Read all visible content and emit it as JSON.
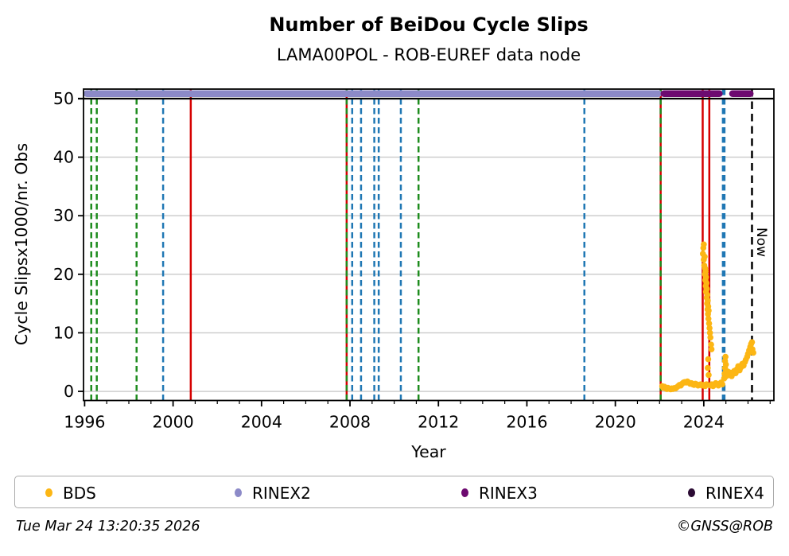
{
  "header": {
    "title": "Number of BeiDou Cycle Slips",
    "subtitle": "LAMA00POL - ROB-EUREF data node"
  },
  "chart_data": {
    "type": "scatter",
    "title": "Number of BeiDou Cycle Slips",
    "subtitle": "LAMA00POL - ROB-EUREF data node",
    "xlabel": "Year",
    "ylabel": "Cycle Slipsx1000/nr. Obs",
    "xlim": [
      1995.95,
      2027.17
    ],
    "ylim": [
      -1.56,
      51.63
    ],
    "xticks_major": [
      1996,
      2000,
      2004,
      2008,
      2012,
      2016,
      2020,
      2024
    ],
    "xtick_minor_step": 1,
    "yticks": [
      0,
      10,
      20,
      30,
      40,
      50
    ],
    "grid": "horizontal-gray",
    "legend_position": "bottom",
    "reference_line": {
      "value": 50,
      "color": "#000000"
    },
    "format_bands": {
      "value": 50.85,
      "segments": [
        {
          "name": "RINEX2",
          "start": 1996.1,
          "end": 2021.95,
          "color": "#8c8ac8"
        },
        {
          "name": "RINEX3",
          "start": 2022.2,
          "end": 2024.7,
          "color": "#6d0a70"
        },
        {
          "name": "RINEX3",
          "start": 2025.3,
          "end": 2026.1,
          "color": "#6d0a70"
        }
      ]
    },
    "event_lines": [
      {
        "year": 1996.3,
        "color": "green",
        "style": "dashed"
      },
      {
        "year": 1996.55,
        "color": "green",
        "style": "dashed"
      },
      {
        "year": 1998.35,
        "color": "green",
        "style": "dashed"
      },
      {
        "year": 1999.55,
        "color": "blue",
        "style": "dashed"
      },
      {
        "year": 2000.8,
        "color": "red",
        "style": "solid"
      },
      {
        "year": 2007.85,
        "color": "red",
        "style": "solid"
      },
      {
        "year": 2007.85,
        "color": "green",
        "style": "dashed"
      },
      {
        "year": 2008.1,
        "color": "blue",
        "style": "dashed"
      },
      {
        "year": 2008.5,
        "color": "blue",
        "style": "dashed"
      },
      {
        "year": 2009.1,
        "color": "blue",
        "style": "dashed"
      },
      {
        "year": 2009.3,
        "color": "blue",
        "style": "dashed"
      },
      {
        "year": 2010.3,
        "color": "blue",
        "style": "dashed"
      },
      {
        "year": 2011.1,
        "color": "green",
        "style": "dashed"
      },
      {
        "year": 2018.6,
        "color": "blue",
        "style": "dashed"
      },
      {
        "year": 2022.05,
        "color": "red",
        "style": "solid"
      },
      {
        "year": 2022.05,
        "color": "green",
        "style": "dashed"
      },
      {
        "year": 2023.95,
        "color": "red",
        "style": "solid"
      },
      {
        "year": 2024.25,
        "color": "red",
        "style": "solid"
      },
      {
        "year": 2024.9,
        "color": "blue",
        "style": "dashed",
        "width": 4.5
      },
      {
        "year": 2026.18,
        "color": "black",
        "style": "dashed"
      }
    ],
    "now_marker": {
      "year": 2026.18,
      "label": "Now"
    },
    "series": [
      {
        "name": "BDS",
        "color": "#fcb614",
        "points": [
          [
            2022.12,
            0.9
          ],
          [
            2022.17,
            0.6
          ],
          [
            2022.22,
            0.8
          ],
          [
            2022.28,
            0.5
          ],
          [
            2022.33,
            0.4
          ],
          [
            2022.38,
            0.6
          ],
          [
            2022.44,
            0.45
          ],
          [
            2022.5,
            0.35
          ],
          [
            2022.55,
            0.5
          ],
          [
            2022.6,
            0.4
          ],
          [
            2022.66,
            0.55
          ],
          [
            2022.72,
            0.5
          ],
          [
            2022.78,
            0.7
          ],
          [
            2022.84,
            0.9
          ],
          [
            2022.9,
            1.1
          ],
          [
            2022.96,
            1.0
          ],
          [
            2023.02,
            1.3
          ],
          [
            2023.08,
            1.5
          ],
          [
            2023.14,
            1.6
          ],
          [
            2023.2,
            1.5
          ],
          [
            2023.26,
            1.7
          ],
          [
            2023.32,
            1.5
          ],
          [
            2023.38,
            1.3
          ],
          [
            2023.44,
            1.4
          ],
          [
            2023.5,
            1.2
          ],
          [
            2023.56,
            1.1
          ],
          [
            2023.62,
            1.3
          ],
          [
            2023.68,
            1.2
          ],
          [
            2023.74,
            1.0
          ],
          [
            2023.8,
            1.1
          ],
          [
            2023.86,
            1.2
          ],
          [
            2023.92,
            1.0
          ],
          [
            2023.96,
            23.5
          ],
          [
            2023.98,
            24.5
          ],
          [
            2024.0,
            25.1
          ],
          [
            2024.0,
            22.5
          ],
          [
            2024.02,
            21.5
          ],
          [
            2024.04,
            23.0
          ],
          [
            2024.05,
            20.0
          ],
          [
            2024.06,
            21.0
          ],
          [
            2024.07,
            19.0
          ],
          [
            2024.08,
            20.5
          ],
          [
            2024.09,
            18.0
          ],
          [
            2024.1,
            19.5
          ],
          [
            2024.1,
            17.0
          ],
          [
            2024.12,
            18.5
          ],
          [
            2024.13,
            16.0
          ],
          [
            2024.14,
            17.5
          ],
          [
            2024.15,
            15.0
          ],
          [
            2024.16,
            16.5
          ],
          [
            2024.17,
            14.0
          ],
          [
            2024.18,
            15.5
          ],
          [
            2024.19,
            13.2
          ],
          [
            2024.2,
            14.5
          ],
          [
            2024.21,
            12.4
          ],
          [
            2024.22,
            13.8
          ],
          [
            2024.24,
            11.6
          ],
          [
            2024.26,
            10.8
          ],
          [
            2024.28,
            10.0
          ],
          [
            2024.3,
            9.2
          ],
          [
            2024.33,
            8.0
          ],
          [
            2024.35,
            7.2
          ],
          [
            2024.2,
            5.5
          ],
          [
            2024.18,
            4.0
          ],
          [
            2024.22,
            2.8
          ],
          [
            2024.0,
            1.1
          ],
          [
            2024.06,
            0.9
          ],
          [
            2024.12,
            1.2
          ],
          [
            2024.3,
            1.0
          ],
          [
            2024.36,
            1.2
          ],
          [
            2024.42,
            0.9
          ],
          [
            2024.48,
            1.1
          ],
          [
            2024.54,
            1.4
          ],
          [
            2024.6,
            1.2
          ],
          [
            2024.66,
            1.0
          ],
          [
            2024.72,
            1.3
          ],
          [
            2024.78,
            1.5
          ],
          [
            2024.84,
            1.2
          ],
          [
            2024.92,
            2.2
          ],
          [
            2024.94,
            3.0
          ],
          [
            2024.96,
            4.0
          ],
          [
            2024.96,
            5.2
          ],
          [
            2024.98,
            5.9
          ],
          [
            2025.0,
            4.6
          ],
          [
            2025.0,
            3.4
          ],
          [
            2025.02,
            2.6
          ],
          [
            2025.08,
            3.4
          ],
          [
            2025.14,
            2.9
          ],
          [
            2025.2,
            3.2
          ],
          [
            2025.26,
            2.6
          ],
          [
            2025.32,
            3.0
          ],
          [
            2025.38,
            3.5
          ],
          [
            2025.44,
            3.1
          ],
          [
            2025.5,
            3.8
          ],
          [
            2025.56,
            4.3
          ],
          [
            2025.62,
            3.6
          ],
          [
            2025.68,
            4.1
          ],
          [
            2025.74,
            4.7
          ],
          [
            2025.8,
            4.4
          ],
          [
            2025.86,
            5.0
          ],
          [
            2025.9,
            5.4
          ],
          [
            2025.96,
            5.9
          ],
          [
            2026.0,
            6.4
          ],
          [
            2026.05,
            7.0
          ],
          [
            2026.1,
            7.6
          ],
          [
            2026.14,
            8.1
          ],
          [
            2026.18,
            8.4
          ],
          [
            2026.2,
            7.2
          ],
          [
            2026.24,
            6.6
          ]
        ]
      }
    ]
  },
  "colors": {
    "green": "#1e8c1e",
    "blue": "#1f77b4",
    "red": "#d60000",
    "black": "#000000",
    "grid": "#c9c9c9",
    "spine": "#000000"
  },
  "legend": {
    "items": [
      {
        "label": "BDS",
        "color": "#fcb614"
      },
      {
        "label": "RINEX2",
        "color": "#8c8ac8"
      },
      {
        "label": "RINEX3",
        "color": "#6d0a70"
      },
      {
        "label": "RINEX4",
        "color": "#2b0b33"
      }
    ]
  },
  "footer": {
    "timestamp": "Tue Mar 24 13:20:35 2026",
    "credit": "©GNSS@ROB"
  }
}
